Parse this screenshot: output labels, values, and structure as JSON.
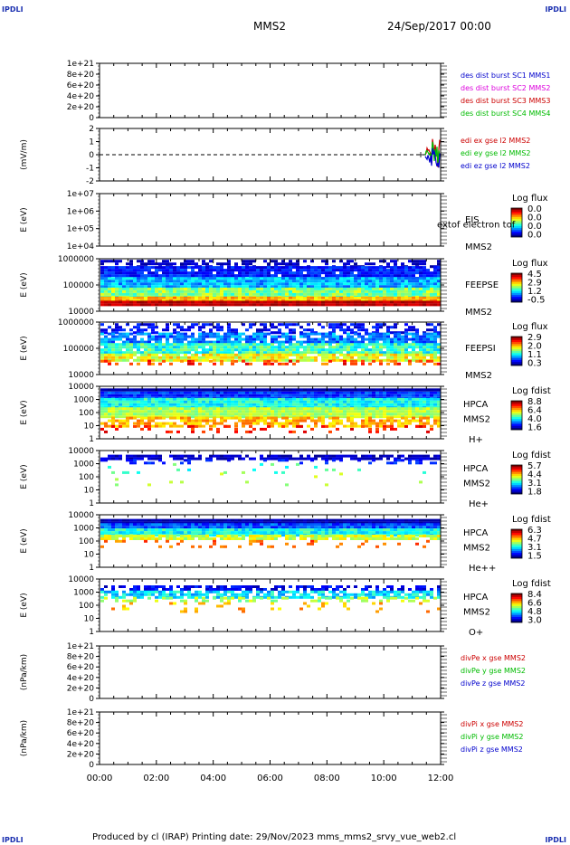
{
  "corners": {
    "tl": "IPDLI",
    "tr": "IPDLI",
    "bl": "IPDLI",
    "br": "IPDLI"
  },
  "header": {
    "spacecraft": "MMS2",
    "date": "24/Sep/2017 00:00"
  },
  "footer": {
    "text": "Produced by cl (IRAP)   Printing date: 29/Nov/2023   mms_mms2_srvy_vue_web2.cl"
  },
  "colors": {
    "sc1": "#0000cc",
    "sc2": "#dd00dd",
    "sc3": "#cc0000",
    "sc4": "#00bb00"
  },
  "chart_data": {
    "type": "heatmap",
    "x_ticks": [
      "00:00",
      "02:00",
      "04:00",
      "06:00",
      "08:00",
      "10:00",
      "12:00"
    ],
    "x_range": [
      "00:00",
      "12:00"
    ],
    "panels": [
      {
        "kind": "line",
        "ylabel": "",
        "yticks": [
          "1e+21",
          "8e+20",
          "6e+20",
          "4e+20",
          "2e+20",
          "0"
        ],
        "legend": [
          {
            "text": "des dist burst SC1 MMS1",
            "color": "#0000cc"
          },
          {
            "text": "des dist burst SC2 MMS2",
            "color": "#dd00dd"
          },
          {
            "text": "des dist burst SC3 MMS3",
            "color": "#cc0000"
          },
          {
            "text": "des dist burst SC4 MMS4",
            "color": "#00bb00"
          }
        ]
      },
      {
        "kind": "line",
        "ylabel": "(mV/m)",
        "yticks": [
          "2",
          "1",
          "0",
          "-1",
          "-2"
        ],
        "legend": [
          {
            "text": "edi ex gse l2 MMS2",
            "color": "#cc0000"
          },
          {
            "text": "edi ey gse l2 MMS2",
            "color": "#00bb00"
          },
          {
            "text": "edi ez gse l2 MMS2",
            "color": "#0000cc"
          }
        ]
      },
      {
        "kind": "spec",
        "ylabel": "E (eV)",
        "yticks": [
          "1e+07",
          "1e+06",
          "1e+05",
          "1e+04"
        ],
        "side": [
          "EIS",
          "MMS2"
        ],
        "overlay": "extof electron tof",
        "cbar_title": "Log flux",
        "cbar": [
          "0.0",
          "0.0",
          "0.0",
          "0.0"
        ],
        "fill": "none"
      },
      {
        "kind": "spec",
        "ylabel": "E (eV)",
        "yticks": [
          "1000000",
          "100000",
          "10000"
        ],
        "side": [
          "FEEPSE",
          "MMS2"
        ],
        "cbar_title": "Log flux",
        "cbar": [
          "4.5",
          "2.9",
          "1.2",
          "-0.5"
        ],
        "fill": "feepse"
      },
      {
        "kind": "spec",
        "ylabel": "E (eV)",
        "yticks": [
          "1000000",
          "100000",
          "10000"
        ],
        "side": [
          "FEEPSI",
          "MMS2"
        ],
        "cbar_title": "Log flux",
        "cbar": [
          "2.9",
          "2.0",
          "1.1",
          "0.3"
        ],
        "fill": "feepsi"
      },
      {
        "kind": "spec",
        "ylabel": "E (eV)",
        "yticks": [
          "10000",
          "1000",
          "100",
          "10",
          "1"
        ],
        "side": [
          "HPCA",
          "MMS2",
          "H+"
        ],
        "cbar_title": "Log fdist",
        "cbar": [
          "8.8",
          "6.4",
          "4.0",
          "1.6"
        ],
        "fill": "hplus"
      },
      {
        "kind": "spec",
        "ylabel": "E (eV)",
        "yticks": [
          "10000",
          "1000",
          "100",
          "10",
          "1"
        ],
        "side": [
          "HPCA",
          "MMS2",
          "He+"
        ],
        "cbar_title": "Log fdist",
        "cbar": [
          "5.7",
          "4.4",
          "3.1",
          "1.8"
        ],
        "fill": "heplus"
      },
      {
        "kind": "spec",
        "ylabel": "E (eV)",
        "yticks": [
          "10000",
          "1000",
          "100",
          "10",
          "1"
        ],
        "side": [
          "HPCA",
          "MMS2",
          "He++"
        ],
        "cbar_title": "Log fdist",
        "cbar": [
          "6.3",
          "4.7",
          "3.1",
          "1.5"
        ],
        "fill": "hepp"
      },
      {
        "kind": "spec",
        "ylabel": "E (eV)",
        "yticks": [
          "10000",
          "1000",
          "100",
          "10",
          "1"
        ],
        "side": [
          "HPCA",
          "MMS2",
          "O+"
        ],
        "cbar_title": "Log fdist",
        "cbar": [
          "8.4",
          "6.6",
          "4.8",
          "3.0"
        ],
        "fill": "oplus"
      },
      {
        "kind": "line",
        "ylabel": "(nPa/km)",
        "yticks": [
          "1e+21",
          "8e+20",
          "6e+20",
          "4e+20",
          "2e+20",
          "0"
        ],
        "legend": [
          {
            "text": "divPe x gse MMS2",
            "color": "#cc0000"
          },
          {
            "text": "divPe y gse MMS2",
            "color": "#00bb00"
          },
          {
            "text": "divPe z gse MMS2",
            "color": "#0000cc"
          }
        ]
      },
      {
        "kind": "line",
        "ylabel": "(nPa/km)",
        "yticks": [
          "1e+21",
          "8e+20",
          "6e+20",
          "4e+20",
          "2e+20",
          "0"
        ],
        "legend": [
          {
            "text": "divPi x gse MMS2",
            "color": "#cc0000"
          },
          {
            "text": "divPi y gse MMS2",
            "color": "#00bb00"
          },
          {
            "text": "divPi z gse MMS2",
            "color": "#0000cc"
          }
        ]
      }
    ]
  }
}
